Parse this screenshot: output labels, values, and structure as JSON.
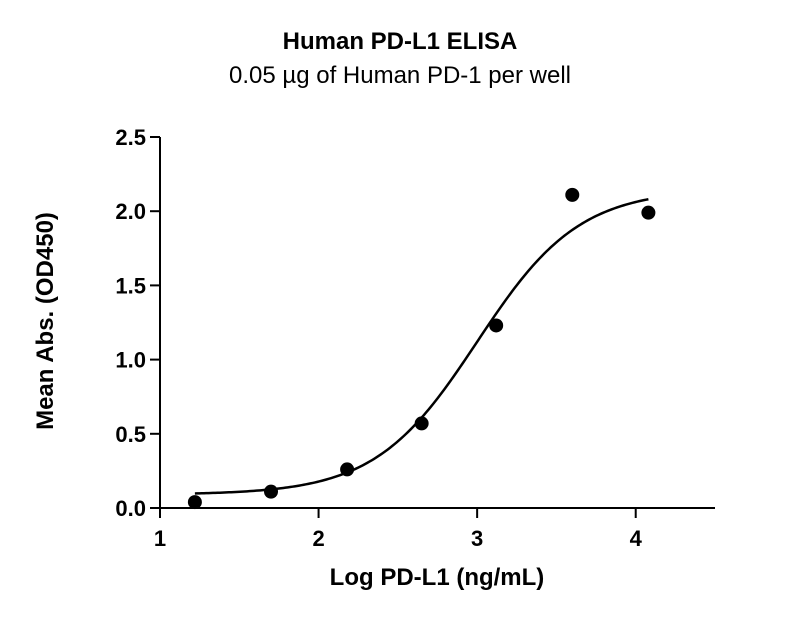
{
  "chart_data": {
    "type": "scatter",
    "title": "Human PD-L1 ELISA",
    "subtitle": "0.05 µg of Human PD-1 per well",
    "xlabel": "Log PD-L1 (ng/mL)",
    "ylabel": "Mean  Abs. (OD450)",
    "xlim": [
      1,
      4.5
    ],
    "ylim": [
      0,
      2.5
    ],
    "x_ticks": [
      1,
      2,
      3,
      4
    ],
    "y_ticks": [
      0.0,
      0.5,
      1.0,
      1.5,
      2.0,
      2.5
    ],
    "x_tick_labels": [
      "1",
      "2",
      "3",
      "4"
    ],
    "y_tick_labels": [
      "0.0",
      "0.5",
      "1.0",
      "1.5",
      "2.0",
      "2.5"
    ],
    "grid": false,
    "series": [
      {
        "x": [
          1.22,
          1.7,
          2.18,
          2.65,
          3.12,
          3.6,
          4.08
        ],
        "y": [
          0.04,
          0.11,
          0.26,
          0.57,
          1.23,
          2.11,
          1.99
        ]
      }
    ],
    "fit_curve": {
      "model": "four-parameter logistic",
      "x_range": [
        1.22,
        4.08
      ],
      "bottom": 0.09,
      "top": 2.15,
      "log_ec50": 3.0,
      "hill_slope": 1.35
    }
  }
}
